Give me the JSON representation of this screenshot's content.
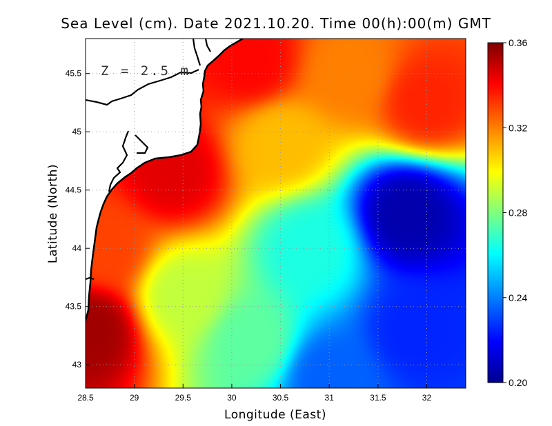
{
  "chart_data": {
    "type": "heatmap",
    "title": "Sea Level (cm). Date 2021.10.20. Time 00(h):00(m) GMT",
    "xlabel": "Longitude (East)",
    "ylabel": "Latitude (North)",
    "xlim": [
      28.5,
      32.4
    ],
    "ylim": [
      42.8,
      45.8
    ],
    "x_ticks": [
      "28.5",
      "29",
      "29.5",
      "30",
      "30.5",
      "31",
      "31.5",
      "32"
    ],
    "x_tick_values": [
      28.5,
      29,
      29.5,
      30,
      30.5,
      31,
      31.5,
      32
    ],
    "y_ticks": [
      "43",
      "43.5",
      "44",
      "44.5",
      "45",
      "45.5"
    ],
    "y_tick_values": [
      43,
      43.5,
      44,
      44.5,
      45,
      45.5
    ],
    "annotation": "Z = 2.5 m",
    "grid": true,
    "colorbar": {
      "min": 0.2,
      "max": 0.36,
      "ticks": [
        "0.36",
        "0.32",
        "0.28",
        "0.24",
        "0.20"
      ],
      "tick_values": [
        0.36,
        0.32,
        0.28,
        0.24,
        0.2
      ],
      "colormap": "jet",
      "colors": [
        "#00008f",
        "#0000ff",
        "#00ffff",
        "#ffff00",
        "#ff0000",
        "#800000"
      ]
    },
    "field_samples": [
      {
        "lon": 28.55,
        "lat": 43.3,
        "value": 0.355
      },
      {
        "lon": 28.7,
        "lat": 44.0,
        "value": 0.33
      },
      {
        "lon": 29.4,
        "lat": 44.65,
        "value": 0.345
      },
      {
        "lon": 30.2,
        "lat": 45.6,
        "value": 0.34
      },
      {
        "lon": 32.0,
        "lat": 45.25,
        "value": 0.335
      },
      {
        "lon": 31.2,
        "lat": 45.5,
        "value": 0.32
      },
      {
        "lon": 30.5,
        "lat": 44.9,
        "value": 0.31
      },
      {
        "lon": 29.5,
        "lat": 43.6,
        "value": 0.29
      },
      {
        "lon": 30.2,
        "lat": 43.2,
        "value": 0.275
      },
      {
        "lon": 30.8,
        "lat": 44.0,
        "value": 0.265
      },
      {
        "lon": 31.8,
        "lat": 44.3,
        "value": 0.205
      },
      {
        "lon": 31.9,
        "lat": 43.3,
        "value": 0.225
      },
      {
        "lon": 31.0,
        "lat": 42.9,
        "value": 0.235
      }
    ]
  }
}
